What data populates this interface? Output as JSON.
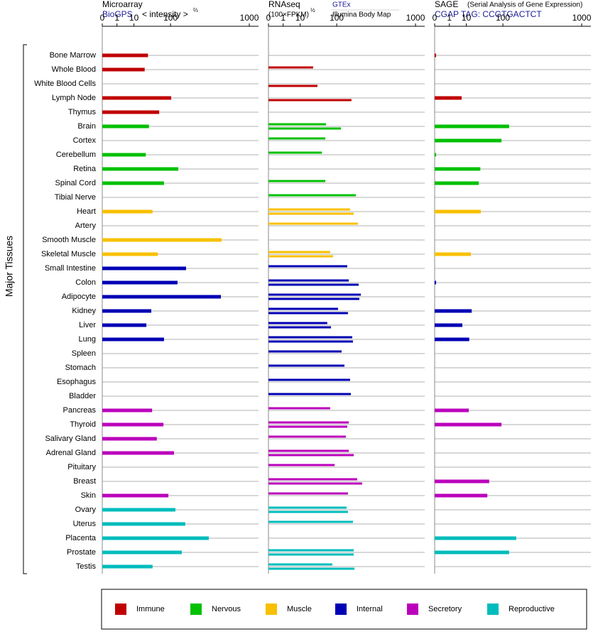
{
  "chart_data": {
    "type": "bar",
    "orientation": "horizontal",
    "y_label": "Major Tissues",
    "categories": [
      "Bone Marrow",
      "Whole Blood",
      "White Blood Cells",
      "Lymph Node",
      "Thymus",
      "Brain",
      "Cortex",
      "Cerebellum",
      "Retina",
      "Spinal Cord",
      "Tibial Nerve",
      "Heart",
      "Artery",
      "Smooth Muscle",
      "Skeletal Muscle",
      "Small Intestine",
      "Colon",
      "Adipocyte",
      "Kidney",
      "Liver",
      "Lung",
      "Spleen",
      "Stomach",
      "Esophagus",
      "Bladder",
      "Pancreas",
      "Thyroid",
      "Salivary Gland",
      "Adrenal Gland",
      "Pituitary",
      "Breast",
      "Skin",
      "Ovary",
      "Uterus",
      "Placenta",
      "Prostate",
      "Testis"
    ],
    "category_group": [
      0,
      0,
      0,
      0,
      0,
      1,
      1,
      1,
      1,
      1,
      1,
      2,
      2,
      2,
      2,
      3,
      3,
      3,
      3,
      3,
      3,
      3,
      3,
      3,
      3,
      4,
      4,
      4,
      4,
      4,
      4,
      4,
      5,
      5,
      5,
      5,
      5
    ],
    "groups": [
      {
        "name": "Immune",
        "color": "#c00000"
      },
      {
        "name": "Nervous",
        "color": "#00c000"
      },
      {
        "name": "Muscle",
        "color": "#f8c000"
      },
      {
        "name": "Internal",
        "color": "#0000b4"
      },
      {
        "name": "Secretory",
        "color": "#bb00bb"
      },
      {
        "name": "Reproductive",
        "color": "#00bcbc"
      }
    ],
    "scale": "cbrt",
    "xlim": [
      0,
      1200
    ],
    "xticks": [
      0,
      1,
      10,
      100,
      1000
    ],
    "grid": true,
    "panels": [
      {
        "title": "Microarray",
        "source": "BioGPS",
        "x_label": "< intensity >",
        "x_label_exponent": "⅔",
        "series": [
          {
            "values": [
              30,
              24,
              null,
              103,
              58,
              32,
              null,
              26,
              138,
              74,
              null,
              40,
              null,
              534,
              54,
              185,
              134,
              525,
              37,
              27,
              74,
              null,
              null,
              null,
              null,
              39,
              72,
              51,
              116,
              null,
              null,
              91,
              123,
              180,
              380,
              158,
              40
            ]
          }
        ]
      },
      {
        "title": "RNAseq",
        "x_label": "(100×FPKM)",
        "x_label_exponent": "½",
        "series": [
          {
            "name": "GTEx",
            "values": [
              null,
              28,
              null,
              null,
              null,
              60,
              58,
              48,
              null,
              58,
              210,
              171,
              225,
              null,
              74,
              154,
              163,
              248,
              106,
              64,
              185,
              123,
              138,
              171,
              176,
              74,
              163,
              146,
              163,
              91,
              220,
              158,
              150,
              190,
              null,
              195,
              82
            ]
          },
          {
            "name": "Illumina Body Map",
            "values": [
              null,
              null,
              37,
              180,
              null,
              120,
              null,
              null,
              null,
              null,
              null,
              195,
              null,
              null,
              85,
              null,
              231,
              236,
              158,
              77,
              190,
              null,
              null,
              null,
              null,
              null,
              154,
              null,
              195,
              null,
              259,
              null,
              158,
              null,
              null,
              195,
              200
            ]
          }
        ]
      },
      {
        "title": "SAGE",
        "note": "(Serial Analysis of Gene Expression)",
        "source": "CGAP TAG: CCGTGACTCT",
        "series": [
          {
            "values": [
              0.001,
              null,
              null,
              6.2,
              null,
              130,
              94,
              0.001,
              30,
              27,
              null,
              31,
              null,
              null,
              15,
              null,
              0.001,
              null,
              16,
              6.7,
              13,
              null,
              null,
              null,
              null,
              12.5,
              94,
              null,
              null,
              null,
              51,
              46,
              null,
              null,
              171,
              130,
              null
            ]
          }
        ]
      }
    ]
  }
}
